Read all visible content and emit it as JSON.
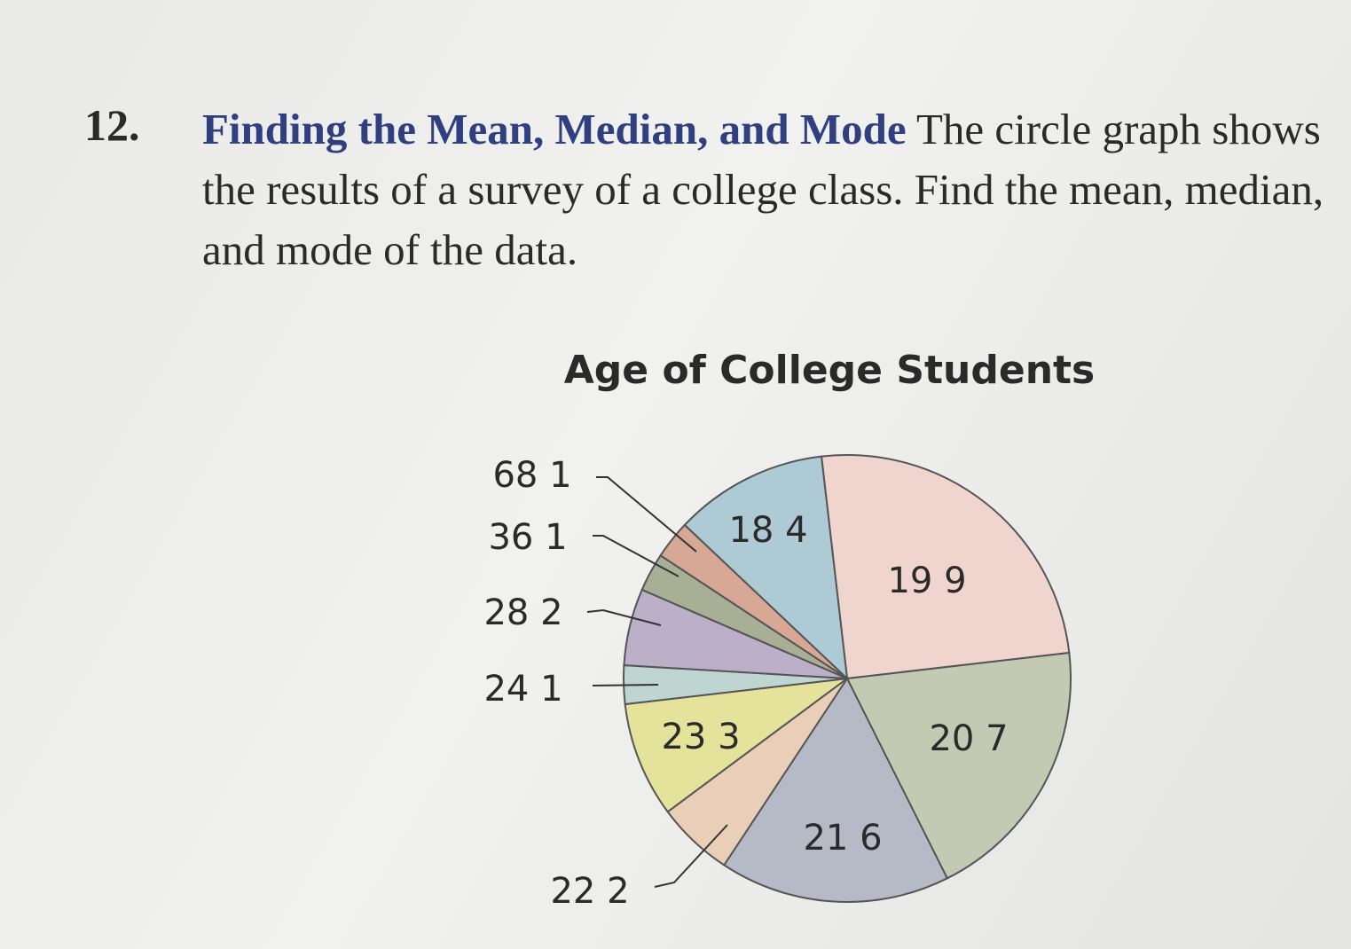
{
  "problem": {
    "number": "12.",
    "heading": "Finding the Mean, Median, and Mode",
    "text": "The circle graph shows the results of a survey of a college class. Find the mean, median, and mode of the data."
  },
  "chart_data": {
    "type": "pie",
    "title": "Age of College Students",
    "categories": [
      "19",
      "20",
      "21",
      "22",
      "23",
      "24",
      "28",
      "36",
      "68",
      "18"
    ],
    "values": [
      9,
      7,
      6,
      2,
      3,
      1,
      2,
      1,
      1,
      4
    ],
    "colors": [
      "#efd5cd",
      "#c2cab4",
      "#b6bac6",
      "#e9cfb7",
      "#e5e29c",
      "#bfd5d2",
      "#bbb0c8",
      "#a8af95",
      "#d8a897",
      "#aecad5"
    ]
  }
}
